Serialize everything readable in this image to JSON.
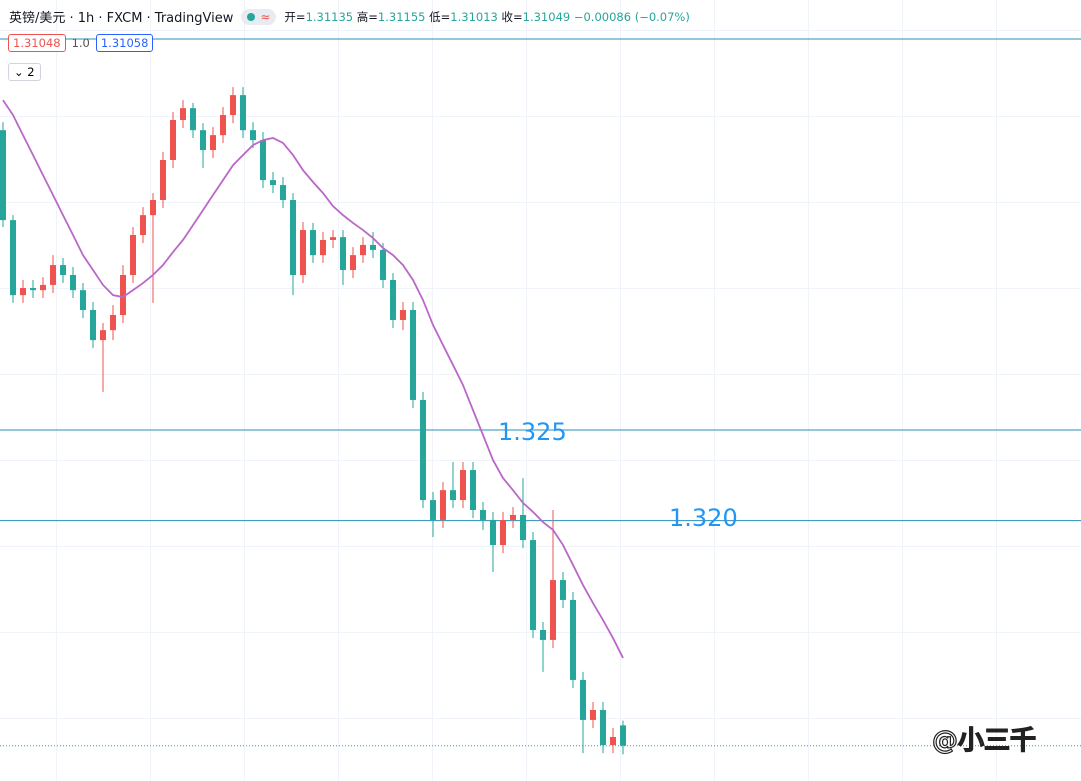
{
  "chart_data": {
    "type": "candlestick",
    "title": "英镑/美元 · 1h · FXCM · TradingView",
    "ohlc_labels": [
      "开=",
      "高=",
      "低=",
      "收="
    ],
    "change": "−0.00086 (−0.07%)",
    "price_boxes": [
      "1.31048",
      "1.0",
      "1.31058"
    ],
    "indicator_toggle": "2",
    "up_color": "#ef5350",
    "down_color": "#26a69a",
    "ma_color": "#ba68c8",
    "line_color": "#2a8fb8",
    "ylim": [
      1.309,
      1.342
    ],
    "candles": [
      [
        1.3365,
        1.33684,
        1.33241,
        1.3327
      ],
      [
        1.3327,
        1.33291,
        1.3292,
        1.32953
      ],
      [
        1.32953,
        1.33017,
        1.3292,
        1.32983
      ],
      [
        1.32983,
        1.33017,
        1.32941,
        1.32974
      ],
      [
        1.32974,
        1.33029,
        1.32941,
        1.32996
      ],
      [
        1.32996,
        1.33122,
        1.32962,
        1.3308
      ],
      [
        1.3308,
        1.3311,
        1.33004,
        1.33038
      ],
      [
        1.33038,
        1.33072,
        1.32941,
        1.32974
      ],
      [
        1.32974,
        1.33004,
        1.32856,
        1.3289
      ],
      [
        1.3289,
        1.32924,
        1.32729,
        1.32763
      ],
      [
        1.32763,
        1.32835,
        1.32544,
        1.32805
      ],
      [
        1.32805,
        1.32911,
        1.32763,
        1.32869
      ],
      [
        1.32869,
        1.3308,
        1.32835,
        1.33038
      ],
      [
        1.33038,
        1.33241,
        1.33004,
        1.33207
      ],
      [
        1.33207,
        1.33325,
        1.33173,
        1.33291
      ],
      [
        1.33291,
        1.33384,
        1.3292,
        1.33355
      ],
      [
        1.33355,
        1.33558,
        1.33321,
        1.33524
      ],
      [
        1.33524,
        1.33727,
        1.3349,
        1.33693
      ],
      [
        1.33693,
        1.33777,
        1.33659,
        1.33743
      ],
      [
        1.33743,
        1.33765,
        1.33617,
        1.3365
      ],
      [
        1.3365,
        1.3368,
        1.3349,
        1.33566
      ],
      [
        1.33566,
        1.33663,
        1.33532,
        1.33629
      ],
      [
        1.33629,
        1.33748,
        1.33596,
        1.33714
      ],
      [
        1.33714,
        1.33832,
        1.3368,
        1.33798
      ],
      [
        1.33798,
        1.33832,
        1.33617,
        1.3365
      ],
      [
        1.3365,
        1.33684,
        1.33574,
        1.33608
      ],
      [
        1.33608,
        1.33642,
        1.33405,
        1.33439
      ],
      [
        1.33439,
        1.33473,
        1.33384,
        1.33418
      ],
      [
        1.33418,
        1.33452,
        1.33321,
        1.33355
      ],
      [
        1.33355,
        1.33384,
        1.32953,
        1.33038
      ],
      [
        1.33038,
        1.33262,
        1.33004,
        1.33228
      ],
      [
        1.33228,
        1.33258,
        1.33089,
        1.33122
      ],
      [
        1.33122,
        1.3322,
        1.33089,
        1.33186
      ],
      [
        1.33186,
        1.33228,
        1.33152,
        1.33198
      ],
      [
        1.33198,
        1.33228,
        1.32996,
        1.33059
      ],
      [
        1.33059,
        1.33156,
        1.33025,
        1.33122
      ],
      [
        1.33122,
        1.33198,
        1.33089,
        1.33165
      ],
      [
        1.33165,
        1.3322,
        1.3311,
        1.33144
      ],
      [
        1.33144,
        1.33173,
        1.32983,
        1.33017
      ],
      [
        1.33017,
        1.33046,
        1.32814,
        1.32848
      ],
      [
        1.32848,
        1.32924,
        1.32805,
        1.3289
      ],
      [
        1.3289,
        1.32924,
        1.32476,
        1.3251
      ],
      [
        1.3251,
        1.32544,
        1.32053,
        1.32087
      ],
      [
        1.32087,
        1.32121,
        1.31931,
        1.32003
      ],
      [
        1.32003,
        1.32163,
        1.31969,
        1.32129
      ],
      [
        1.32129,
        1.32248,
        1.32053,
        1.32087
      ],
      [
        1.32087,
        1.32248,
        1.32053,
        1.32214
      ],
      [
        1.32214,
        1.32248,
        1.32011,
        1.32045
      ],
      [
        1.32045,
        1.32079,
        1.31961,
        1.32003
      ],
      [
        1.32003,
        1.32037,
        1.31783,
        1.31897
      ],
      [
        1.31897,
        1.32037,
        1.31863,
        1.32003
      ],
      [
        1.32003,
        1.32058,
        1.31969,
        1.32024
      ],
      [
        1.32024,
        1.3218,
        1.31884,
        1.31918
      ],
      [
        1.31918,
        1.31952,
        1.31504,
        1.31538
      ],
      [
        1.31538,
        1.31572,
        1.31361,
        1.31496
      ],
      [
        1.31496,
        1.32045,
        1.31462,
        1.31749
      ],
      [
        1.31749,
        1.31783,
        1.31631,
        1.31665
      ],
      [
        1.31665,
        1.31699,
        1.31293,
        1.31327
      ],
      [
        1.31327,
        1.31361,
        1.31018,
        1.31158
      ],
      [
        1.31158,
        1.31234,
        1.31124,
        1.312
      ],
      [
        1.312,
        1.31234,
        1.31018,
        1.31052
      ],
      [
        1.31052,
        1.31124,
        1.31018,
        1.31086
      ],
      [
        1.31135,
        1.31155,
        1.31013,
        1.31049
      ]
    ],
    "ma": [
      1.33777,
      1.33714,
      1.33629,
      1.33545,
      1.3346,
      1.33376,
      1.33291,
      1.33207,
      1.33122,
      1.33059,
      1.32996,
      1.32953,
      1.32945,
      1.32974,
      1.33004,
      1.33038,
      1.3308,
      1.33135,
      1.33186,
      1.33249,
      1.33312,
      1.33376,
      1.33439,
      1.33502,
      1.33545,
      1.33587,
      1.33608,
      1.33617,
      1.33596,
      1.33545,
      1.33481,
      1.33431,
      1.33384,
      1.33329,
      1.33291,
      1.33258,
      1.33228,
      1.33194,
      1.33152,
      1.33122,
      1.3308,
      1.33017,
      1.32932,
      1.32827,
      1.32742,
      1.32658,
      1.32573,
      1.32467,
      1.32362,
      1.32256,
      1.3218,
      1.32129,
      1.32075,
      1.32037,
      1.31994,
      1.31961,
      1.31897,
      1.31813,
      1.31728,
      1.31652,
      1.3158,
      1.31504,
      1.3142
    ],
    "hlines": [
      1.34035,
      1.32383,
      1.32
    ],
    "annotations": [
      "1.325",
      "1.320"
    ],
    "watermark": "@小三千"
  }
}
